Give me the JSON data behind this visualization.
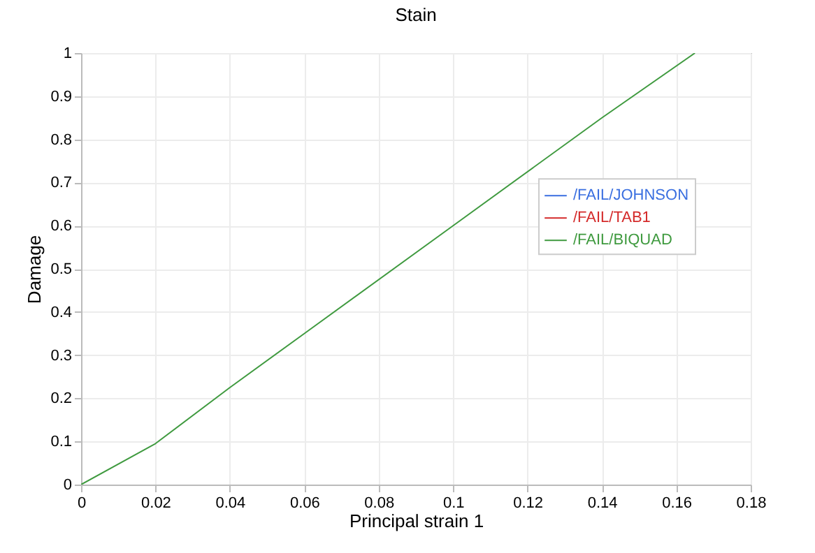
{
  "chart_data": {
    "type": "line",
    "title": "Stain",
    "xlabel": "Principal strain 1",
    "ylabel": "Damage",
    "x": [
      0,
      0.02,
      0.04,
      0.06,
      0.1,
      0.14,
      0.165
    ],
    "series": [
      {
        "name": "/FAIL/JOHNSON",
        "color": "#3a6fe0",
        "values": [
          null,
          null,
          null,
          null,
          null,
          null,
          null
        ]
      },
      {
        "name": "/FAIL/TAB1",
        "color": "#d42a2a",
        "values": [
          null,
          null,
          null,
          null,
          null,
          null,
          null
        ]
      },
      {
        "name": "/FAIL/BIQUAD",
        "color": "#3f9a3f",
        "values": [
          0,
          0.095,
          0.225,
          0.35,
          0.6,
          0.85,
          1
        ]
      }
    ],
    "xlim": [
      0,
      0.18
    ],
    "xticks": [
      0,
      0.02,
      0.04,
      0.06,
      0.08,
      0.1,
      0.12,
      0.14,
      0.16,
      0.18
    ],
    "ylim": [
      0,
      1
    ],
    "yticks": [
      0,
      0.1,
      0.2,
      0.3,
      0.4,
      0.5,
      0.6,
      0.7,
      0.8,
      0.9,
      1
    ],
    "grid": true,
    "legend": "right",
    "marker": "none",
    "line_style": "solid"
  }
}
